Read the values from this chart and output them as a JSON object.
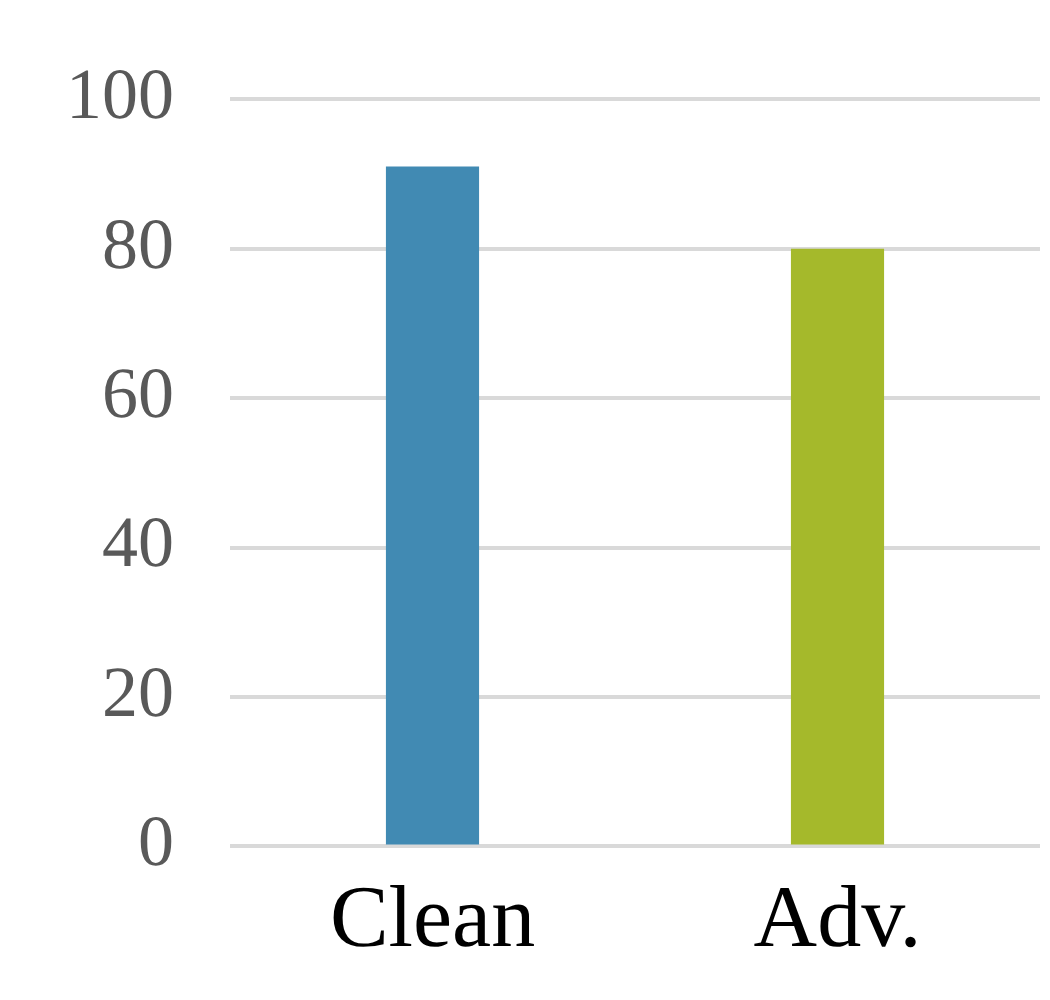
{
  "chart_data": {
    "type": "bar",
    "categories": [
      "Clean",
      "Adv."
    ],
    "values": [
      91,
      80
    ],
    "colors": [
      "#418ab3",
      "#a5b92b"
    ],
    "ylim": [
      0,
      100
    ],
    "yticks": [
      0,
      20,
      40,
      60,
      80,
      100
    ],
    "grid": "y",
    "legend": false
  }
}
